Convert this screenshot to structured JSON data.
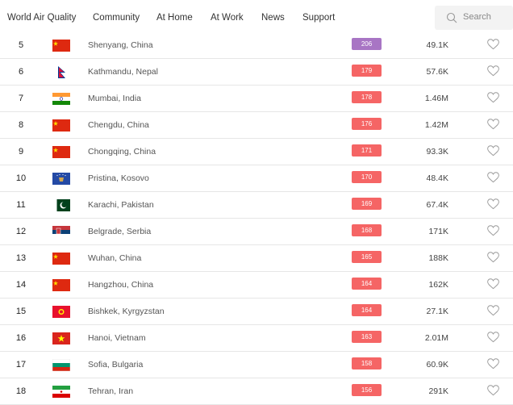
{
  "nav": {
    "items": [
      "World Air Quality",
      "Community",
      "At Home",
      "At Work",
      "News",
      "Support"
    ],
    "search_placeholder": "Search"
  },
  "colors": {
    "unhealthy": "#f56565",
    "very_unhealthy": "#a875c4"
  },
  "rows": [
    {
      "rank": "5",
      "flag": "china",
      "city": "Shenyang, China",
      "aqi": "206",
      "level": "very_unhealthy",
      "followers": "49.1K"
    },
    {
      "rank": "6",
      "flag": "nepal",
      "city": "Kathmandu, Nepal",
      "aqi": "179",
      "level": "unhealthy",
      "followers": "57.6K"
    },
    {
      "rank": "7",
      "flag": "india",
      "city": "Mumbai, India",
      "aqi": "178",
      "level": "unhealthy",
      "followers": "1.46M"
    },
    {
      "rank": "8",
      "flag": "china",
      "city": "Chengdu, China",
      "aqi": "176",
      "level": "unhealthy",
      "followers": "1.42M"
    },
    {
      "rank": "9",
      "flag": "china",
      "city": "Chongqing, China",
      "aqi": "171",
      "level": "unhealthy",
      "followers": "93.3K"
    },
    {
      "rank": "10",
      "flag": "kosovo",
      "city": "Pristina, Kosovo",
      "aqi": "170",
      "level": "unhealthy",
      "followers": "48.4K"
    },
    {
      "rank": "11",
      "flag": "pakistan",
      "city": "Karachi, Pakistan",
      "aqi": "169",
      "level": "unhealthy",
      "followers": "67.4K"
    },
    {
      "rank": "12",
      "flag": "serbia",
      "city": "Belgrade, Serbia",
      "aqi": "168",
      "level": "unhealthy",
      "followers": "171K"
    },
    {
      "rank": "13",
      "flag": "china",
      "city": "Wuhan, China",
      "aqi": "165",
      "level": "unhealthy",
      "followers": "188K"
    },
    {
      "rank": "14",
      "flag": "china",
      "city": "Hangzhou, China",
      "aqi": "164",
      "level": "unhealthy",
      "followers": "162K"
    },
    {
      "rank": "15",
      "flag": "kyrgyzstan",
      "city": "Bishkek, Kyrgyzstan",
      "aqi": "164",
      "level": "unhealthy",
      "followers": "27.1K"
    },
    {
      "rank": "16",
      "flag": "vietnam",
      "city": "Hanoi, Vietnam",
      "aqi": "163",
      "level": "unhealthy",
      "followers": "2.01M"
    },
    {
      "rank": "17",
      "flag": "bulgaria",
      "city": "Sofia, Bulgaria",
      "aqi": "158",
      "level": "unhealthy",
      "followers": "60.9K"
    },
    {
      "rank": "18",
      "flag": "iran",
      "city": "Tehran, Iran",
      "aqi": "156",
      "level": "unhealthy",
      "followers": "291K"
    }
  ]
}
